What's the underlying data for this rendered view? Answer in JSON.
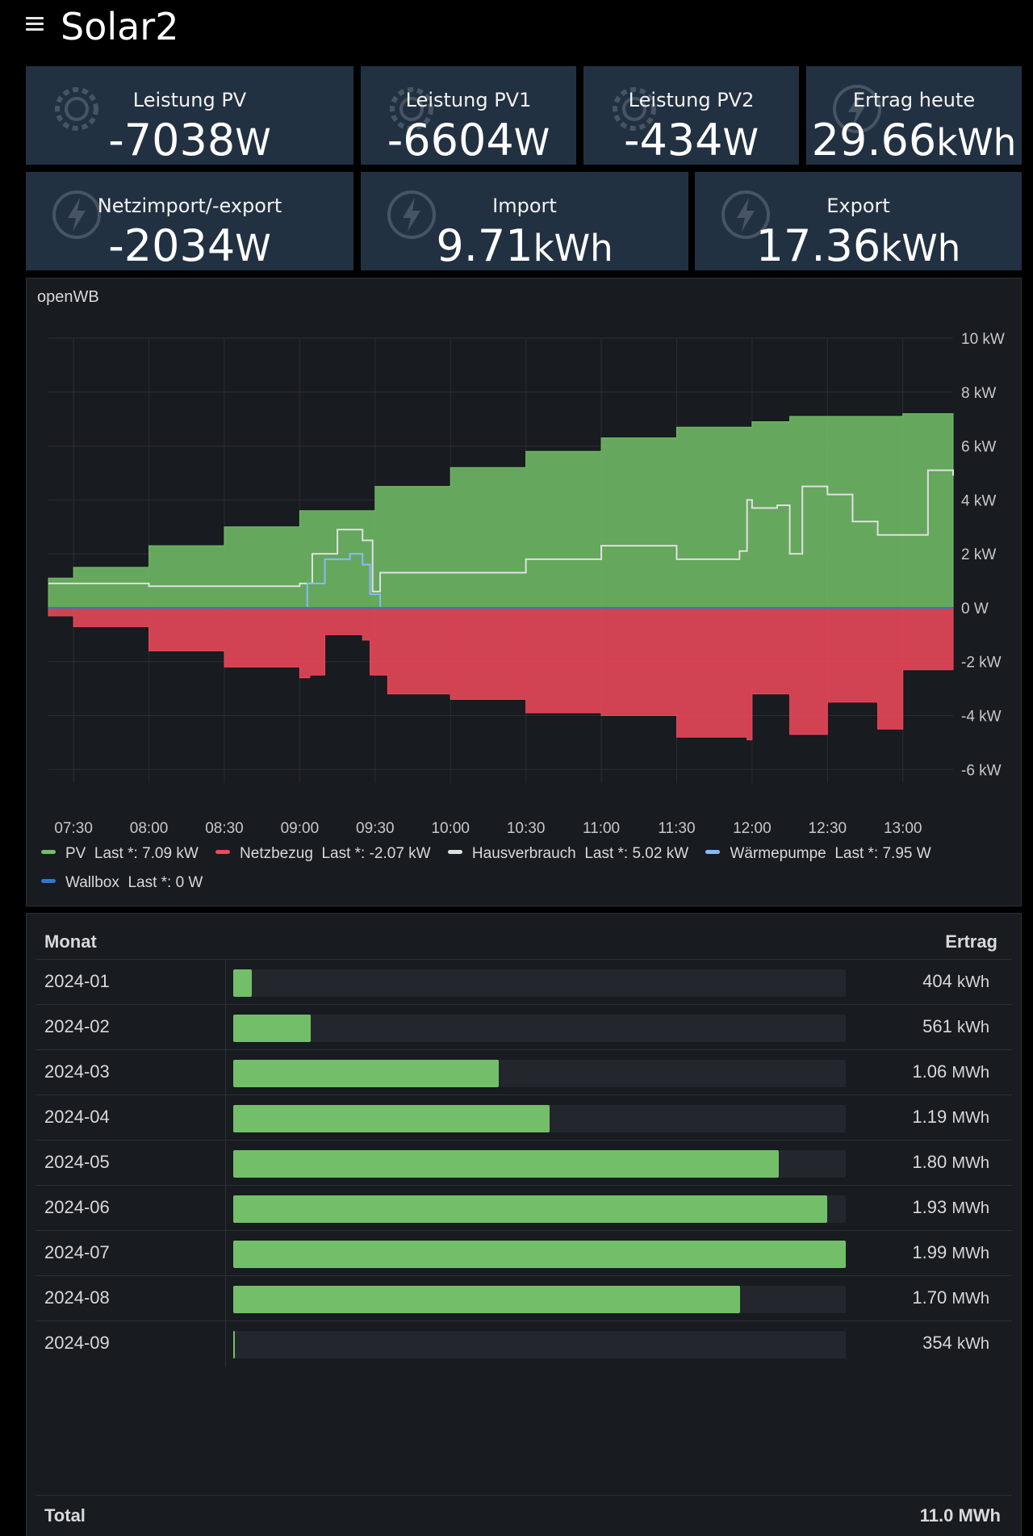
{
  "header": {
    "title": "Solar2"
  },
  "stats_row1": [
    {
      "label": "Leistung PV",
      "value": "-7038",
      "unit": "W",
      "icon": "gear-icon"
    },
    {
      "label": "Leistung PV1",
      "value": "-6604",
      "unit": "W",
      "icon": "gear-icon"
    },
    {
      "label": "Leistung PV2",
      "value": "-434",
      "unit": "W",
      "icon": "gear-icon"
    },
    {
      "label": "Ertrag heute",
      "value": "29.66",
      "unit": "kWh",
      "icon": "lightning-icon"
    }
  ],
  "stats_row2": [
    {
      "label": "Netzimport/-export",
      "value": "-2034",
      "unit": "W",
      "icon": "lightning-icon"
    },
    {
      "label": "Import",
      "value": "9.71",
      "unit": "kWh",
      "icon": "lightning-icon"
    },
    {
      "label": "Export",
      "value": "17.36",
      "unit": "kWh",
      "icon": "lightning-icon"
    }
  ],
  "chart_panel": {
    "title": "openWB"
  },
  "chart_data": {
    "type": "area",
    "title": "openWB",
    "x_ticks": [
      "07:30",
      "08:00",
      "08:30",
      "09:00",
      "09:30",
      "10:00",
      "10:30",
      "11:00",
      "11:30",
      "12:00",
      "12:30",
      "13:00"
    ],
    "y_ticks": [
      "10 kW",
      "8 kW",
      "6 kW",
      "4 kW",
      "2 kW",
      "0 W",
      "-2 kW",
      "-4 kW",
      "-6 kW"
    ],
    "ylim": [
      -6.5,
      10
    ],
    "xlim": [
      "07:20",
      "13:20"
    ],
    "grid": true,
    "legend_position": "bottom",
    "colors": {
      "PV": "#73bf69",
      "Netzbezug": "#f2495c",
      "Hausverbrauch": "#e0e0e0",
      "Waermepumpe": "#8ab8ff",
      "Wallbox": "#3274d9"
    },
    "series": [
      {
        "name": "PV",
        "x": [
          "07:20",
          "07:30",
          "08:00",
          "08:30",
          "09:00",
          "09:30",
          "10:00",
          "10:30",
          "11:00",
          "11:30",
          "12:00",
          "12:15",
          "12:30",
          "13:00",
          "13:20"
        ],
        "values": [
          1.1,
          1.5,
          2.3,
          3.0,
          3.6,
          4.5,
          5.2,
          5.8,
          6.3,
          6.7,
          6.9,
          7.1,
          7.1,
          7.2,
          7.1
        ]
      },
      {
        "name": "Netzbezug",
        "x": [
          "07:20",
          "07:30",
          "08:00",
          "08:30",
          "09:00",
          "09:04",
          "09:10",
          "09:25",
          "09:28",
          "09:35",
          "10:00",
          "10:30",
          "11:00",
          "11:30",
          "11:58",
          "12:00",
          "12:15",
          "12:30",
          "12:50",
          "13:00",
          "13:20"
        ],
        "values": [
          -0.3,
          -0.7,
          -1.6,
          -2.2,
          -2.6,
          -2.5,
          -1.0,
          -1.2,
          -2.5,
          -3.2,
          -3.4,
          -3.9,
          -4.0,
          -4.8,
          -4.9,
          -3.2,
          -4.7,
          -3.5,
          -4.5,
          -2.3,
          -2.2
        ]
      },
      {
        "name": "Hausverbrauch",
        "x": [
          "07:20",
          "07:30",
          "08:00",
          "08:30",
          "09:00",
          "09:05",
          "09:15",
          "09:25",
          "09:29",
          "09:32",
          "10:00",
          "10:30",
          "11:00",
          "11:30",
          "11:55",
          "11:58",
          "12:00",
          "12:10",
          "12:15",
          "12:20",
          "12:30",
          "12:40",
          "12:50",
          "13:00",
          "13:10",
          "13:20"
        ],
        "values": [
          0.9,
          0.9,
          0.8,
          0.8,
          0.9,
          2.0,
          2.9,
          2.5,
          0.6,
          1.3,
          1.3,
          1.8,
          2.3,
          1.8,
          2.1,
          4.0,
          3.7,
          3.8,
          2.0,
          4.5,
          4.2,
          3.2,
          2.7,
          2.7,
          5.1,
          4.9
        ]
      },
      {
        "name": "Wärmepumpe",
        "x": [
          "07:20",
          "09:00",
          "09:03",
          "09:10",
          "09:20",
          "09:25",
          "09:28",
          "09:32",
          "13:20"
        ],
        "values": [
          0,
          0,
          0.9,
          1.8,
          2.0,
          1.6,
          0.5,
          0,
          0
        ]
      },
      {
        "name": "Wallbox",
        "x": [
          "07:20",
          "13:20"
        ],
        "values": [
          0,
          0
        ]
      }
    ],
    "legend": [
      {
        "name": "PV",
        "last": "Last *: 7.09 kW"
      },
      {
        "name": "Netzbezug",
        "last": "Last *: -2.07 kW"
      },
      {
        "name": "Hausverbrauch",
        "last": "Last *: 5.02 kW"
      },
      {
        "name": "Wärmepumpe",
        "last": "Last *: 7.95 W"
      },
      {
        "name": "Wallbox",
        "last": "Last *: 0 W"
      }
    ]
  },
  "table": {
    "col_month": "Monat",
    "col_yield": "Ertrag",
    "max_kwh": 1990,
    "rows": [
      {
        "month": "2024-01",
        "value": "404",
        "unit": "kWh",
        "kwh": 404,
        "fill": 0.03
      },
      {
        "month": "2024-02",
        "value": "561",
        "unit": "kWh",
        "kwh": 561,
        "fill": 0.127
      },
      {
        "month": "2024-03",
        "value": "1.06",
        "unit": "MWh",
        "kwh": 1060,
        "fill": 0.434
      },
      {
        "month": "2024-04",
        "value": "1.19",
        "unit": "MWh",
        "kwh": 1190,
        "fill": 0.517
      },
      {
        "month": "2024-05",
        "value": "1.80",
        "unit": "MWh",
        "kwh": 1800,
        "fill": 0.891
      },
      {
        "month": "2024-06",
        "value": "1.93",
        "unit": "MWh",
        "kwh": 1930,
        "fill": 0.97
      },
      {
        "month": "2024-07",
        "value": "1.99",
        "unit": "MWh",
        "kwh": 1990,
        "fill": 1.0
      },
      {
        "month": "2024-08",
        "value": "1.70",
        "unit": "MWh",
        "kwh": 1700,
        "fill": 0.827
      },
      {
        "month": "2024-09",
        "value": "354",
        "unit": "kWh",
        "kwh": 354,
        "fill": 0.003
      }
    ],
    "total_label": "Total",
    "total_value": "11.0 MWh"
  }
}
